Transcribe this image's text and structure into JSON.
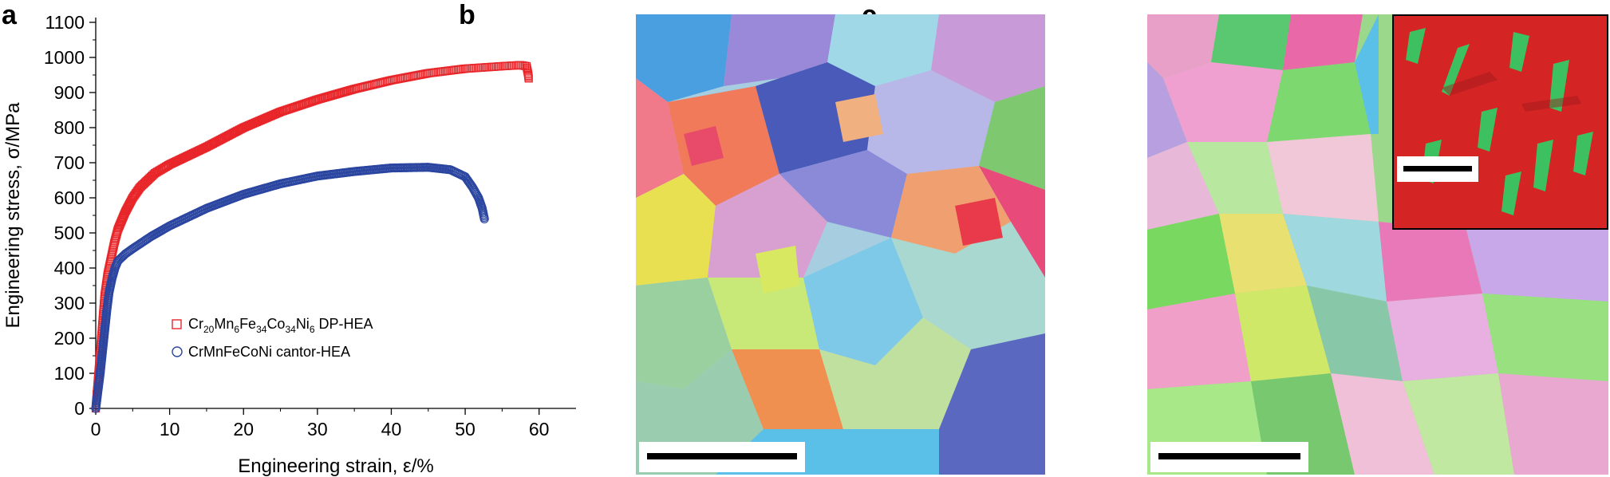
{
  "panels": {
    "a": "a",
    "b": "b",
    "c": "c"
  },
  "chart_data": {
    "type": "scatter",
    "xlabel": "Engineering strain, ε/%",
    "ylabel": "Engineering stress, σ/MPa",
    "xlim": [
      0,
      65
    ],
    "ylim": [
      0,
      1100
    ],
    "xticks": [
      0,
      10,
      20,
      30,
      40,
      50,
      60
    ],
    "yticks": [
      0,
      100,
      200,
      300,
      400,
      500,
      600,
      700,
      800,
      900,
      1000,
      1100
    ],
    "legend_position": "lower-left",
    "series": [
      {
        "name": "Cr20Mn6Fe34Co34Ni6 DP-HEA",
        "legend": {
          "a": "Cr",
          "a_sub": "20",
          "b": "Mn",
          "b_sub": "6",
          "c": "Fe",
          "c_sub": "34",
          "d": "Co",
          "d_sub": "34",
          "e": "Ni",
          "e_sub": "6",
          "suffix": " DP-HEA"
        },
        "color": "#e8262a",
        "marker": "square",
        "x": [
          0,
          0.3,
          0.6,
          0.9,
          1.2,
          1.6,
          2.0,
          2.5,
          3.0,
          4.0,
          5.0,
          6.0,
          8.0,
          10.0,
          12.5,
          15.0,
          20.0,
          25.0,
          30.0,
          35.0,
          40.0,
          45.0,
          50.0,
          55.0,
          57.5,
          58.3,
          58.4,
          58.5,
          58.6
        ],
        "y": [
          0,
          80,
          160,
          240,
          320,
          380,
          420,
          470,
          510,
          560,
          600,
          630,
          670,
          695,
          720,
          745,
          800,
          845,
          880,
          910,
          935,
          955,
          968,
          975,
          978,
          975,
          965,
          955,
          940
        ]
      },
      {
        "name": "CrMnFeCoNi cantor-HEA",
        "color": "#2b46a0",
        "marker": "circle",
        "x": [
          0,
          0.3,
          0.6,
          0.9,
          1.2,
          1.5,
          1.8,
          2.2,
          2.6,
          3.0,
          4.0,
          5.0,
          7.5,
          10.0,
          12.5,
          15.0,
          20.0,
          25.0,
          30.0,
          35.0,
          40.0,
          45.0,
          48.0,
          50.0,
          51.0,
          51.8,
          52.3,
          52.6
        ],
        "y": [
          0,
          50,
          100,
          160,
          220,
          280,
          330,
          370,
          400,
          420,
          440,
          455,
          490,
          520,
          545,
          570,
          610,
          640,
          662,
          675,
          685,
          687,
          680,
          660,
          630,
          600,
          570,
          540
        ]
      }
    ]
  },
  "micrographs": {
    "b": {
      "description_colors": [
        "#f07a5a",
        "#7ec8e8",
        "#5aa0e0",
        "#b08ad8",
        "#d8a0d0",
        "#9ad0a0",
        "#e8e050",
        "#4a5ab8",
        "#f0a070",
        "#a8d8d0"
      ]
    },
    "c": {
      "inset_colors": [
        "#d42424",
        "#3cc060"
      ]
    }
  }
}
